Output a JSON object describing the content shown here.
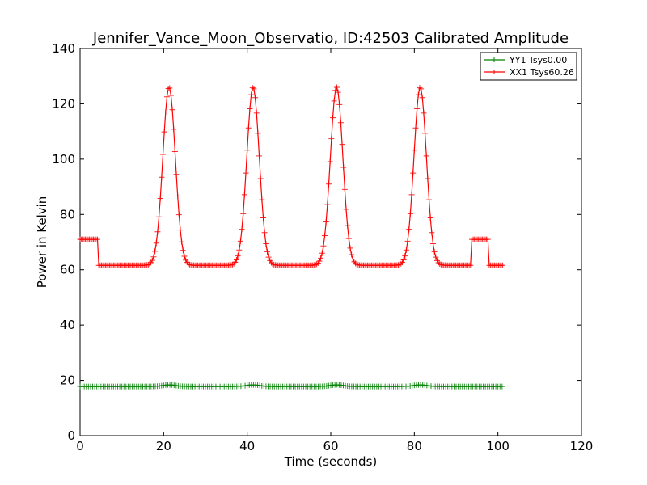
{
  "chart_data": {
    "type": "line",
    "title": "Jennifer_Vance_Moon_Observatio, ID:42503 Calibrated Amplitude",
    "xlabel": "Time (seconds)",
    "ylabel": "Power in Kelvin",
    "xlim": [
      0,
      120
    ],
    "ylim": [
      0,
      140
    ],
    "xticks": [
      0,
      20,
      40,
      60,
      80,
      100,
      120
    ],
    "yticks": [
      0,
      20,
      40,
      60,
      80,
      100,
      120,
      140
    ],
    "grid": false,
    "legend_position": "top-right",
    "marker": "plus",
    "series": [
      {
        "name": "YY1 Tsys0.00",
        "color": "#008000",
        "baseline": 17.8,
        "peak_value": 18.4,
        "peak_times": [
          21.3,
          41.4,
          61.4,
          81.4
        ],
        "x_start": 0.0,
        "x_end": 101.2
      },
      {
        "name": "XX1 Tsys60.26",
        "color": "#ff0000",
        "pre_level": 71.0,
        "pre_end": 4.2,
        "baseline": 61.6,
        "peak_value": 126.0,
        "peak_times": [
          21.3,
          41.4,
          61.4,
          81.4
        ],
        "bump_start": 93.5,
        "bump_end": 97.6,
        "bump_level": 71.0,
        "x_start": 0.0,
        "x_end": 101.2
      }
    ]
  }
}
